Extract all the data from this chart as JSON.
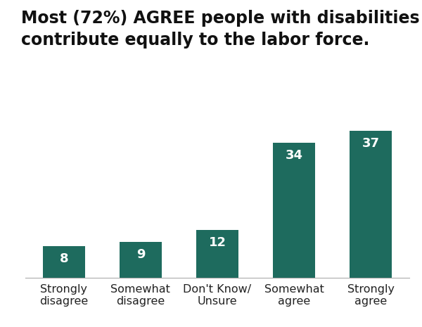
{
  "title_line1": "Most (72%) AGREE people with disabilities",
  "title_line2": "contribute equally to the labor force.",
  "categories": [
    "Strongly\ndisagree",
    "Somewhat\ndisagree",
    "Don't Know/\nUnsure",
    "Somewhat\nagree",
    "Strongly\nagree"
  ],
  "values": [
    8,
    9,
    12,
    34,
    37
  ],
  "bar_color": "#1e6b5e",
  "label_color": "#ffffff",
  "background_color": "#ffffff",
  "ylim": [
    0,
    45
  ],
  "bar_width": 0.55,
  "title_fontsize": 17,
  "label_fontsize": 13,
  "tick_fontsize": 11.5
}
